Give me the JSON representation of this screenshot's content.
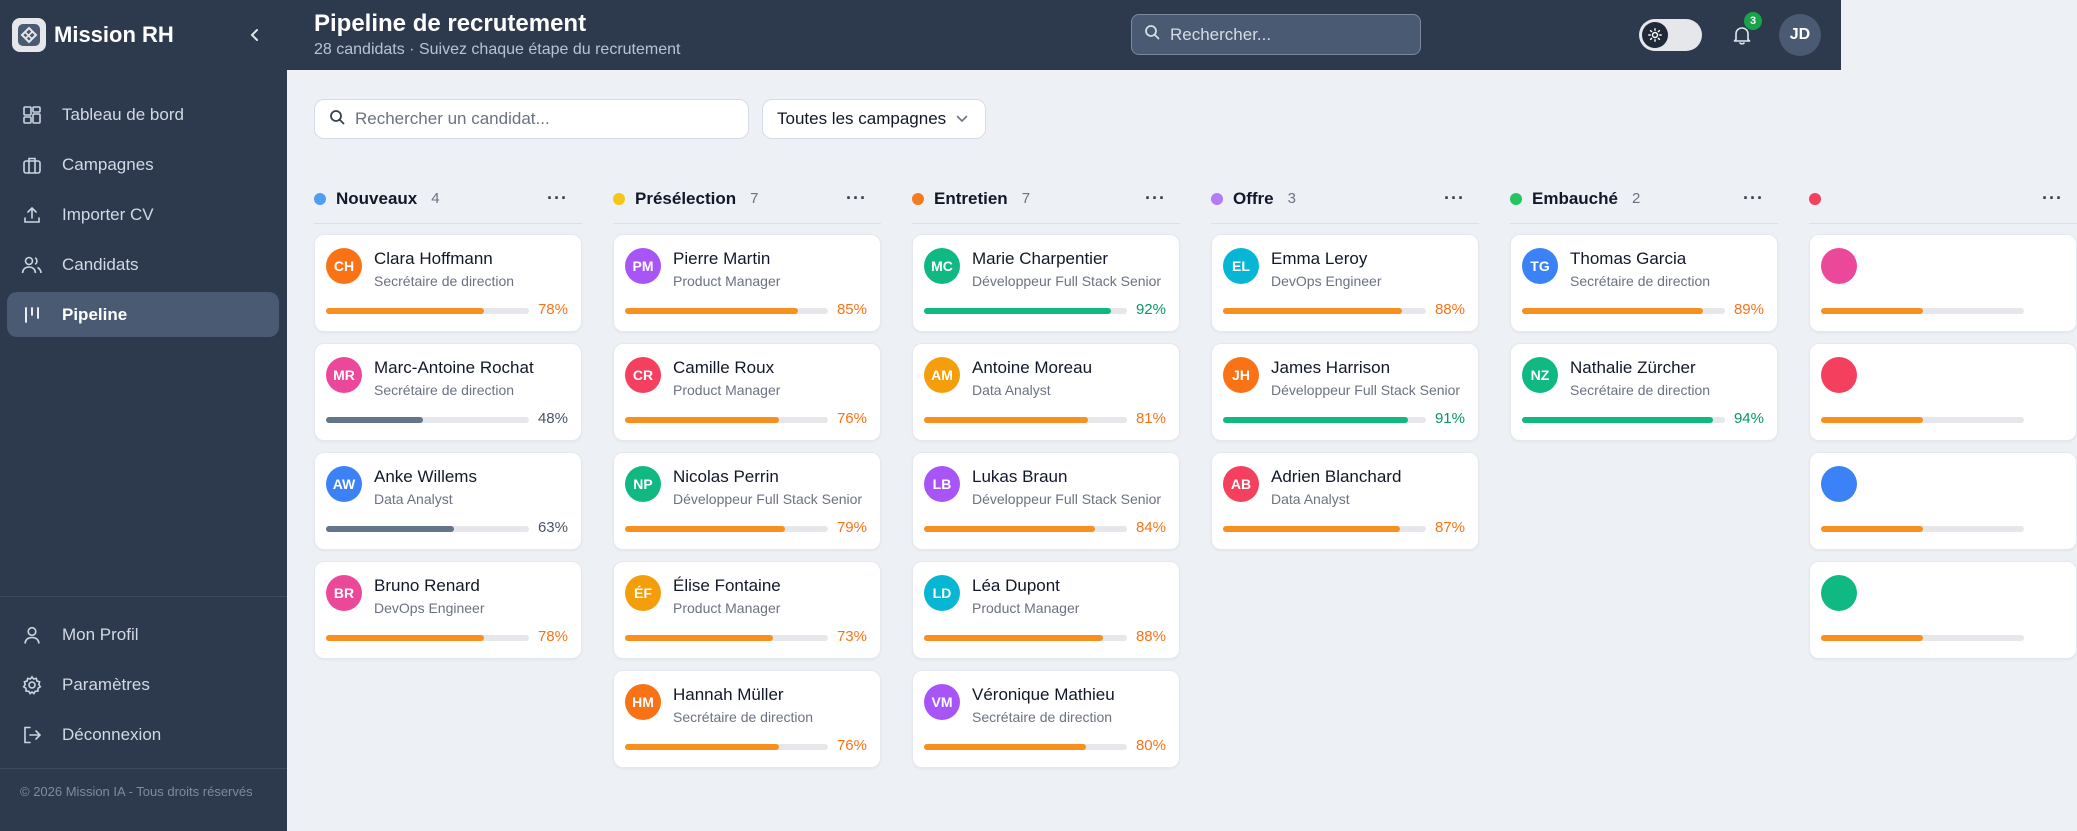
{
  "app": {
    "name": "Mission RH"
  },
  "sidebar": {
    "items": [
      {
        "label": "Tableau de bord",
        "icon": "dashboard-icon",
        "active": false
      },
      {
        "label": "Campagnes",
        "icon": "briefcase-icon",
        "active": false
      },
      {
        "label": "Importer CV",
        "icon": "upload-icon",
        "active": false
      },
      {
        "label": "Candidats",
        "icon": "users-icon",
        "active": false
      },
      {
        "label": "Pipeline",
        "icon": "kanban-icon",
        "active": true
      }
    ],
    "bottom_items": [
      {
        "label": "Mon Profil",
        "icon": "user-icon"
      },
      {
        "label": "Paramètres",
        "icon": "gear-icon"
      },
      {
        "label": "Déconnexion",
        "icon": "logout-icon"
      }
    ],
    "footer": "© 2026 Mission IA - Tous droits réservés"
  },
  "header": {
    "title": "Pipeline de recrutement",
    "subtitle": "28 candidats · Suivez chaque étape du recrutement",
    "search_placeholder": "Rechercher...",
    "notifications_count": "3",
    "user_initials": "JD"
  },
  "filters": {
    "search_placeholder": "Rechercher un candidat...",
    "campaign_selected": "Toutes les campagnes"
  },
  "colors": {
    "orange": "#f7901e",
    "slate": "#64748b",
    "green": "#10b981"
  },
  "columns": [
    {
      "title": "Nouveaux",
      "count": "4",
      "dot": "#4f9ef2",
      "cards": [
        {
          "initials": "CH",
          "name": "Clara Hoffmann",
          "role": "Secrétaire de direction",
          "score": 78,
          "score_label": "78%",
          "avatar": "#f97316",
          "tone": "orange"
        },
        {
          "initials": "MR",
          "name": "Marc-Antoine Rochat",
          "role": "Secrétaire de direction",
          "score": 48,
          "score_label": "48%",
          "avatar": "#ec4899",
          "tone": "slate"
        },
        {
          "initials": "AW",
          "name": "Anke Willems",
          "role": "Data Analyst",
          "score": 63,
          "score_label": "63%",
          "avatar": "#3b82f6",
          "tone": "slate"
        },
        {
          "initials": "BR",
          "name": "Bruno Renard",
          "role": "DevOps Engineer",
          "score": 78,
          "score_label": "78%",
          "avatar": "#ec4899",
          "tone": "orange"
        }
      ]
    },
    {
      "title": "Présélection",
      "count": "7",
      "dot": "#f5c518",
      "cards": [
        {
          "initials": "PM",
          "name": "Pierre Martin",
          "role": "Product Manager",
          "score": 85,
          "score_label": "85%",
          "avatar": "#a855f7",
          "tone": "orange"
        },
        {
          "initials": "CR",
          "name": "Camille Roux",
          "role": "Product Manager",
          "score": 76,
          "score_label": "76%",
          "avatar": "#f43f5e",
          "tone": "orange"
        },
        {
          "initials": "NP",
          "name": "Nicolas Perrin",
          "role": "Développeur Full Stack Senior",
          "score": 79,
          "score_label": "79%",
          "avatar": "#10b981",
          "tone": "orange"
        },
        {
          "initials": "ÉF",
          "name": "Élise Fontaine",
          "role": "Product Manager",
          "score": 73,
          "score_label": "73%",
          "avatar": "#f59e0b",
          "tone": "orange"
        },
        {
          "initials": "HM",
          "name": "Hannah Müller",
          "role": "Secrétaire de direction",
          "score": 76,
          "score_label": "76%",
          "avatar": "#f97316",
          "tone": "orange"
        }
      ]
    },
    {
      "title": "Entretien",
      "count": "7",
      "dot": "#f47c20",
      "cards": [
        {
          "initials": "MC",
          "name": "Marie Charpentier",
          "role": "Développeur Full Stack Senior",
          "score": 92,
          "score_label": "92%",
          "avatar": "#10b981",
          "tone": "green"
        },
        {
          "initials": "AM",
          "name": "Antoine Moreau",
          "role": "Data Analyst",
          "score": 81,
          "score_label": "81%",
          "avatar": "#f59e0b",
          "tone": "orange"
        },
        {
          "initials": "LB",
          "name": "Lukas Braun",
          "role": "Développeur Full Stack Senior",
          "score": 84,
          "score_label": "84%",
          "avatar": "#a855f7",
          "tone": "orange"
        },
        {
          "initials": "LD",
          "name": "Léa Dupont",
          "role": "Product Manager",
          "score": 88,
          "score_label": "88%",
          "avatar": "#06b6d4",
          "tone": "orange"
        },
        {
          "initials": "VM",
          "name": "Véronique Mathieu",
          "role": "Secrétaire de direction",
          "score": 80,
          "score_label": "80%",
          "avatar": "#a855f7",
          "tone": "orange"
        }
      ]
    },
    {
      "title": "Offre",
      "count": "3",
      "dot": "#b27cf5",
      "cards": [
        {
          "initials": "EL",
          "name": "Emma Leroy",
          "role": "DevOps Engineer",
          "score": 88,
          "score_label": "88%",
          "avatar": "#06b6d4",
          "tone": "orange"
        },
        {
          "initials": "JH",
          "name": "James Harrison",
          "role": "Développeur Full Stack Senior",
          "score": 91,
          "score_label": "91%",
          "avatar": "#f97316",
          "tone": "green"
        },
        {
          "initials": "AB",
          "name": "Adrien Blanchard",
          "role": "Data Analyst",
          "score": 87,
          "score_label": "87%",
          "avatar": "#f43f5e",
          "tone": "orange"
        }
      ]
    },
    {
      "title": "Embauché",
      "count": "2",
      "dot": "#22c55e",
      "cards": [
        {
          "initials": "TG",
          "name": "Thomas Garcia",
          "role": "Secrétaire de direction",
          "score": 89,
          "score_label": "89%",
          "avatar": "#3b82f6",
          "tone": "orange"
        },
        {
          "initials": "NZ",
          "name": "Nathalie Zürcher",
          "role": "Secrétaire de direction",
          "score": 94,
          "score_label": "94%",
          "avatar": "#10b981",
          "tone": "green"
        }
      ]
    },
    {
      "title": "",
      "count": "",
      "dot": "#f43f5e",
      "cards": [
        {
          "initials": "",
          "name": "",
          "role": "",
          "score": 50,
          "score_label": "",
          "avatar": "#ec4899",
          "tone": "orange"
        },
        {
          "initials": "",
          "name": "",
          "role": "",
          "score": 50,
          "score_label": "",
          "avatar": "#f43f5e",
          "tone": "orange"
        },
        {
          "initials": "",
          "name": "",
          "role": "",
          "score": 50,
          "score_label": "",
          "avatar": "#3b82f6",
          "tone": "orange"
        },
        {
          "initials": "",
          "name": "",
          "role": "",
          "score": 50,
          "score_label": "",
          "avatar": "#10b981",
          "tone": "orange"
        }
      ]
    }
  ]
}
